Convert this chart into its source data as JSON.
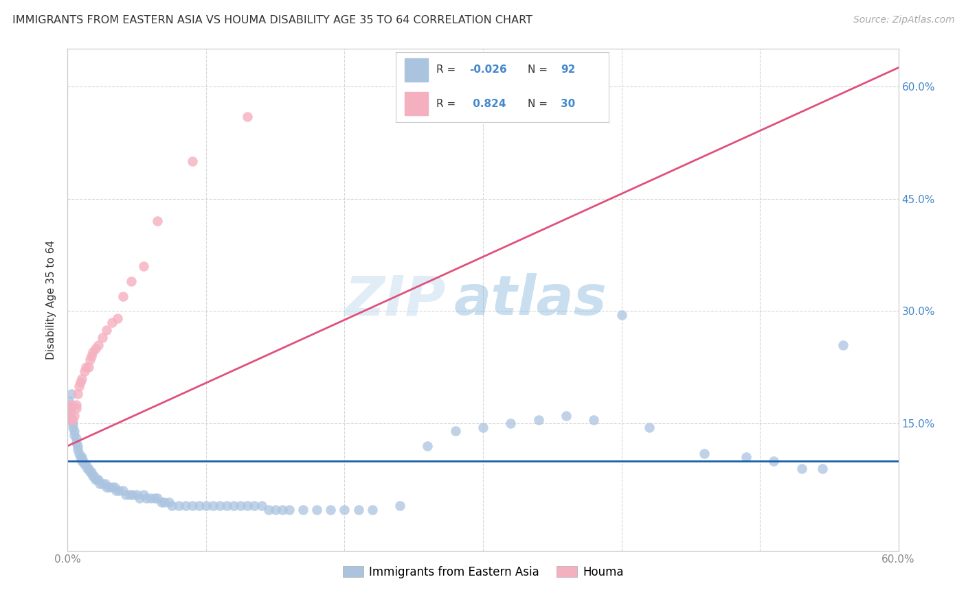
{
  "title": "IMMIGRANTS FROM EASTERN ASIA VS HOUMA DISABILITY AGE 35 TO 64 CORRELATION CHART",
  "source": "Source: ZipAtlas.com",
  "ylabel": "Disability Age 35 to 64",
  "xlim": [
    0.0,
    0.6
  ],
  "ylim": [
    -0.02,
    0.65
  ],
  "x_ticks": [
    0.0,
    0.1,
    0.2,
    0.3,
    0.4,
    0.5,
    0.6
  ],
  "x_tick_labels": [
    "0.0%",
    "",
    "",
    "",
    "",
    "",
    "60.0%"
  ],
  "y_ticks_right": [
    0.15,
    0.3,
    0.45,
    0.6
  ],
  "y_tick_labels_right": [
    "15.0%",
    "30.0%",
    "45.0%",
    "60.0%"
  ],
  "blue_color": "#aac4e0",
  "blue_line_color": "#1a5fa8",
  "pink_color": "#f5b0c0",
  "pink_line_color": "#e0507a",
  "legend_blue_color": "#aac4e0",
  "legend_pink_color": "#f5b0c0",
  "watermark_zip": "ZIP",
  "watermark_atlas": "atlas",
  "blue_scatter_x": [
    0.001,
    0.002,
    0.002,
    0.003,
    0.003,
    0.004,
    0.004,
    0.005,
    0.005,
    0.006,
    0.006,
    0.007,
    0.007,
    0.008,
    0.009,
    0.01,
    0.01,
    0.011,
    0.012,
    0.013,
    0.014,
    0.015,
    0.016,
    0.017,
    0.018,
    0.019,
    0.02,
    0.021,
    0.022,
    0.023,
    0.025,
    0.027,
    0.028,
    0.03,
    0.032,
    0.034,
    0.035,
    0.037,
    0.04,
    0.042,
    0.045,
    0.047,
    0.05,
    0.052,
    0.055,
    0.057,
    0.06,
    0.063,
    0.065,
    0.068,
    0.07,
    0.073,
    0.075,
    0.08,
    0.085,
    0.09,
    0.095,
    0.1,
    0.105,
    0.11,
    0.115,
    0.12,
    0.125,
    0.13,
    0.135,
    0.14,
    0.145,
    0.15,
    0.155,
    0.16,
    0.17,
    0.18,
    0.19,
    0.2,
    0.21,
    0.22,
    0.24,
    0.26,
    0.28,
    0.3,
    0.32,
    0.34,
    0.36,
    0.38,
    0.4,
    0.42,
    0.46,
    0.49,
    0.51,
    0.53,
    0.545,
    0.56
  ],
  "blue_scatter_y": [
    0.18,
    0.17,
    0.16,
    0.19,
    0.155,
    0.15,
    0.145,
    0.14,
    0.135,
    0.13,
    0.125,
    0.12,
    0.115,
    0.11,
    0.105,
    0.1,
    0.105,
    0.1,
    0.095,
    0.095,
    0.09,
    0.09,
    0.085,
    0.085,
    0.08,
    0.08,
    0.075,
    0.075,
    0.075,
    0.07,
    0.07,
    0.07,
    0.065,
    0.065,
    0.065,
    0.065,
    0.06,
    0.06,
    0.06,
    0.055,
    0.055,
    0.055,
    0.055,
    0.05,
    0.055,
    0.05,
    0.05,
    0.05,
    0.05,
    0.045,
    0.045,
    0.045,
    0.04,
    0.04,
    0.04,
    0.04,
    0.04,
    0.04,
    0.04,
    0.04,
    0.04,
    0.04,
    0.04,
    0.04,
    0.04,
    0.04,
    0.035,
    0.035,
    0.035,
    0.035,
    0.035,
    0.035,
    0.035,
    0.035,
    0.035,
    0.035,
    0.04,
    0.12,
    0.14,
    0.145,
    0.15,
    0.155,
    0.16,
    0.155,
    0.295,
    0.145,
    0.11,
    0.105,
    0.1,
    0.09,
    0.09,
    0.255
  ],
  "pink_scatter_x": [
    0.001,
    0.002,
    0.003,
    0.003,
    0.004,
    0.005,
    0.006,
    0.006,
    0.007,
    0.008,
    0.009,
    0.01,
    0.012,
    0.013,
    0.015,
    0.016,
    0.017,
    0.018,
    0.02,
    0.022,
    0.025,
    0.028,
    0.032,
    0.036,
    0.04,
    0.046,
    0.055,
    0.065,
    0.09,
    0.13
  ],
  "pink_scatter_y": [
    0.155,
    0.165,
    0.17,
    0.175,
    0.155,
    0.16,
    0.17,
    0.175,
    0.19,
    0.2,
    0.205,
    0.21,
    0.22,
    0.225,
    0.225,
    0.235,
    0.24,
    0.245,
    0.25,
    0.255,
    0.265,
    0.275,
    0.285,
    0.29,
    0.32,
    0.34,
    0.36,
    0.42,
    0.5,
    0.56
  ],
  "pink_line_x0": 0.0,
  "pink_line_y0": 0.12,
  "pink_line_x1": 0.6,
  "pink_line_y1": 0.625,
  "blue_line_x0": 0.0,
  "blue_line_y0": 0.1,
  "blue_line_x1": 0.6,
  "blue_line_y1": 0.1
}
